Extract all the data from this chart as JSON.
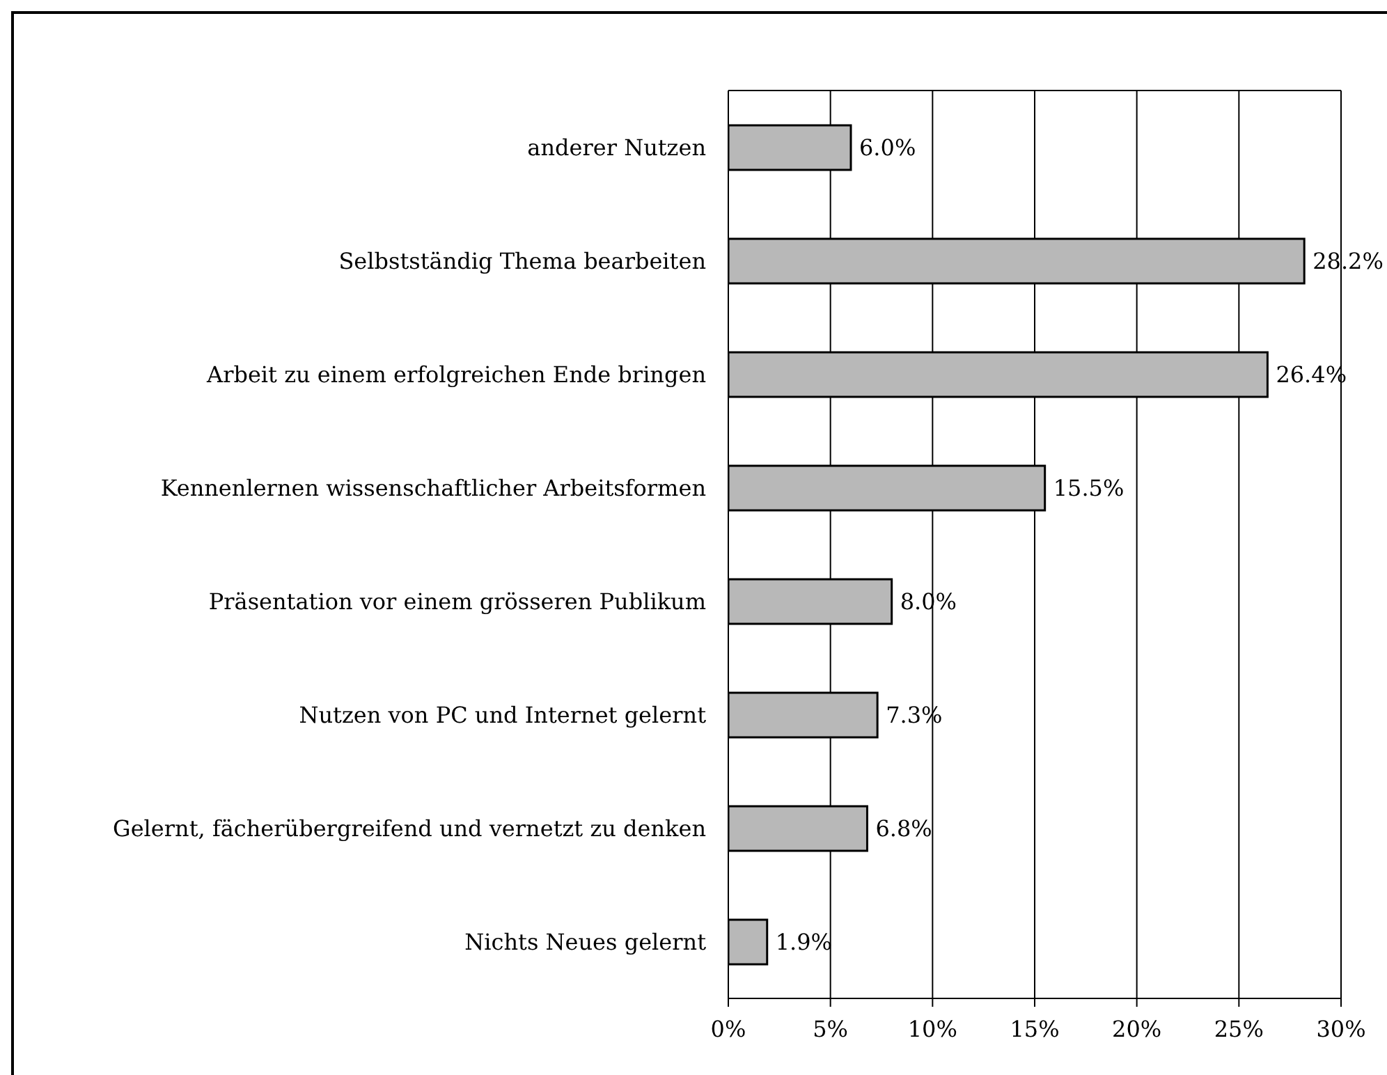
{
  "chart_data": {
    "type": "bar",
    "orientation": "horizontal",
    "categories": [
      "anderer Nutzen",
      "Selbstständig Thema bearbeiten",
      "Arbeit zu einem erfolgreichen Ende bringen",
      "Kennenlernen wissenschaftlicher Arbeitsformen",
      "Präsentation vor einem grösseren Publikum",
      "Nutzen von PC und Internet gelernt",
      "Gelernt, fächerübergreifend und vernetzt zu denken",
      "Nichts Neues gelernt"
    ],
    "values": [
      6.0,
      28.2,
      26.4,
      15.5,
      8.0,
      7.3,
      6.8,
      1.9
    ],
    "value_labels": [
      "6.0%",
      "28.2%",
      "26.4%",
      "15.5%",
      "8.0%",
      "7.3%",
      "6.8%",
      "1.9%"
    ],
    "color": "#b8b8b8",
    "xlim": [
      0,
      30
    ],
    "xticks": [
      {
        "value": 0,
        "label": "0%"
      },
      {
        "value": 5,
        "label": "5%"
      },
      {
        "value": 10,
        "label": "10%"
      },
      {
        "value": 15,
        "label": "15%"
      },
      {
        "value": 20,
        "label": "20%"
      },
      {
        "value": 25,
        "label": "25%"
      },
      {
        "value": 30,
        "label": "30%"
      }
    ],
    "grid": "x"
  }
}
